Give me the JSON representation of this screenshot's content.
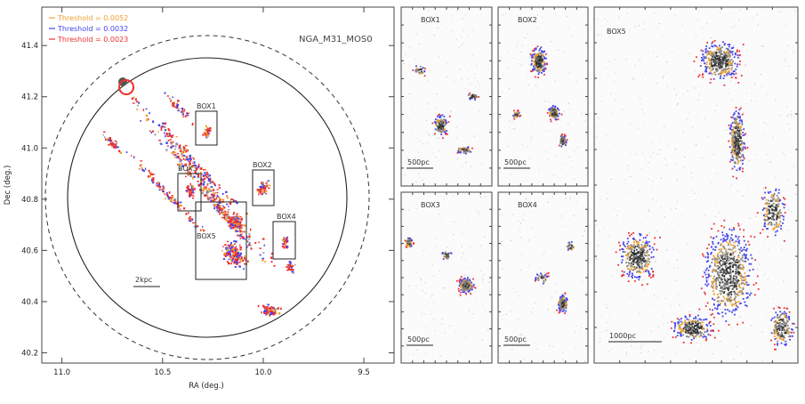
{
  "main": {
    "title": "NGA_M31_MOS0",
    "xlabel": "RA (deg.)",
    "ylabel": "Dec (deg.)",
    "scalebar": "2kpc",
    "legend": [
      {
        "label": "Threshold = 0.0052",
        "color": "#f0a030"
      },
      {
        "label": "Threshold = 0.0032",
        "color": "#4444ee"
      },
      {
        "label": "Threshold = 0.0023",
        "color": "#ee3030"
      }
    ],
    "box_labels": [
      "BOX1",
      "BOX2",
      "BOX3",
      "BOX4",
      "BOX5"
    ]
  },
  "panels": [
    {
      "label": "BOX1",
      "scalebar": "500pc"
    },
    {
      "label": "BOX2",
      "scalebar": "500pc"
    },
    {
      "label": "BOX3",
      "scalebar": "500pc"
    },
    {
      "label": "BOX4",
      "scalebar": "500pc"
    },
    {
      "label": "BOX5",
      "scalebar": "1000pc"
    }
  ],
  "chart_data": {
    "type": "scatter",
    "title": "NGA_M31_MOS0",
    "xlabel": "RA (deg.)",
    "ylabel": "Dec (deg.)",
    "xlim": [
      11.1,
      9.35
    ],
    "ylim": [
      40.16,
      41.55
    ],
    "x_ticks": [
      "11.0",
      "10.5",
      "10.0",
      "9.5"
    ],
    "y_ticks": [
      "40.2",
      "40.4",
      "40.6",
      "40.8",
      "41.0",
      "41.2",
      "41.4"
    ],
    "series": [
      {
        "name": "Threshold = 0.0052",
        "color": "#f0a030"
      },
      {
        "name": "Threshold = 0.0032",
        "color": "#4444ee"
      },
      {
        "name": "Threshold = 0.0023",
        "color": "#ee3030"
      }
    ]
  }
}
